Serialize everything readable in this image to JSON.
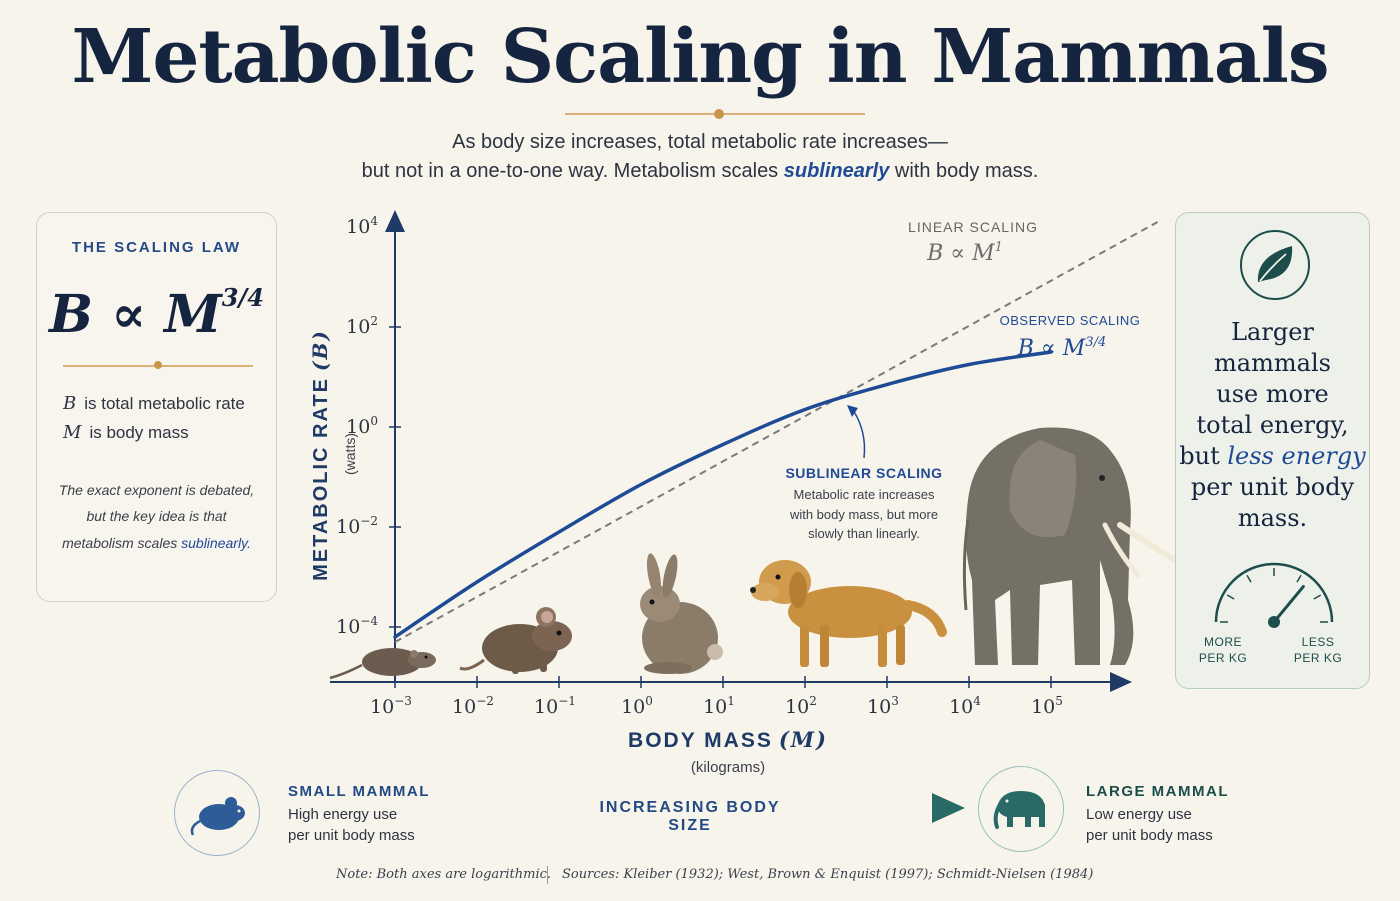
{
  "title": "Metabolic Scaling in Mammals",
  "subtitle": {
    "line1": "As body size increases, total metabolic rate increases—",
    "line2_before": "but not in a one-to-one way. Metabolism scales ",
    "line2_highlight": "sublinearly",
    "line2_after": " with body mass."
  },
  "law_card": {
    "heading": "THE SCALING LAW",
    "formula_base": "B ∝ M",
    "formula_exp": "3/4",
    "def_b_symbol": "B",
    "def_b_text": "is total metabolic rate",
    "def_m_symbol": "M",
    "def_m_text": "is body mass",
    "note1": "The exact exponent is debated,",
    "note2": "but the key idea is that",
    "note3_before": "metabolism scales ",
    "note3_highlight": "sublinearly",
    "note3_after": "."
  },
  "energy_card": {
    "lines": [
      "Larger",
      "mammals",
      "use more",
      "total energy,"
    ],
    "emphasis_before": "but ",
    "emphasis": "less energy",
    "lines_after": [
      "per unit body",
      "mass."
    ],
    "gauge_left_1": "MORE",
    "gauge_left_2": "PER KG",
    "gauge_right_1": "LESS",
    "gauge_right_2": "PER KG",
    "gauge_level": 0.72
  },
  "chart_data": {
    "type": "line",
    "x_scale": "log",
    "y_scale": "log",
    "xlabel": "BODY MASS",
    "xlabel_symbol": "(M)",
    "xunit": "(kilograms)",
    "ylabel": "METABOLIC RATE",
    "ylabel_symbol": "(B)",
    "yunit": "(watts)",
    "x_ticks": [
      -3,
      -2,
      -1,
      0,
      1,
      2,
      3,
      4,
      5
    ],
    "y_ticks": [
      -4,
      -2,
      0,
      2,
      4
    ],
    "series": [
      {
        "name": "LINEAR SCALING",
        "formula": "B ∝ M",
        "formula_exp": "1",
        "style": "dashed",
        "color": "#7a7a7a",
        "log_x": [
          -3,
          6.3
        ],
        "log_y": [
          -4.3,
          4.1
        ]
      },
      {
        "name": "OBSERVED SCALING",
        "formula": "B ∝ M",
        "formula_exp": "3/4",
        "style": "solid",
        "color": "#1f4a96",
        "log_x": [
          -3,
          -2,
          -1,
          0,
          1,
          2,
          3,
          4,
          5
        ],
        "log_y": [
          -4.2,
          -3.1,
          -2.1,
          -1.15,
          -0.35,
          0.35,
          0.85,
          1.25,
          1.5
        ]
      }
    ],
    "annotation": {
      "heading": "SUBLINEAR SCALING",
      "lines": [
        "Metabolic rate increases",
        "with body mass, but more",
        "slowly than linearly."
      ]
    },
    "animals": [
      "shrew",
      "mouse",
      "rabbit",
      "dog",
      "elephant"
    ]
  },
  "bottom": {
    "small_head": "SMALL MAMMAL",
    "small_sub_1": "High energy use",
    "small_sub_2": "per unit body mass",
    "arrow_label": "INCREASING BODY SIZE",
    "large_head": "LARGE MAMMAL",
    "large_sub_1": "Low energy use",
    "large_sub_2": "per unit body mass"
  },
  "footer": {
    "note": "Note: Both axes are logarithmic.",
    "sources": "Sources: Kleiber (1932); West, Brown & Enquist (1997); Schmidt-Nielsen (1984)"
  },
  "colors": {
    "navy": "#15243f",
    "blue": "#1f4a96",
    "teal": "#1d4d4b",
    "gold": "#c9954d",
    "background": "#f7f4ec"
  }
}
